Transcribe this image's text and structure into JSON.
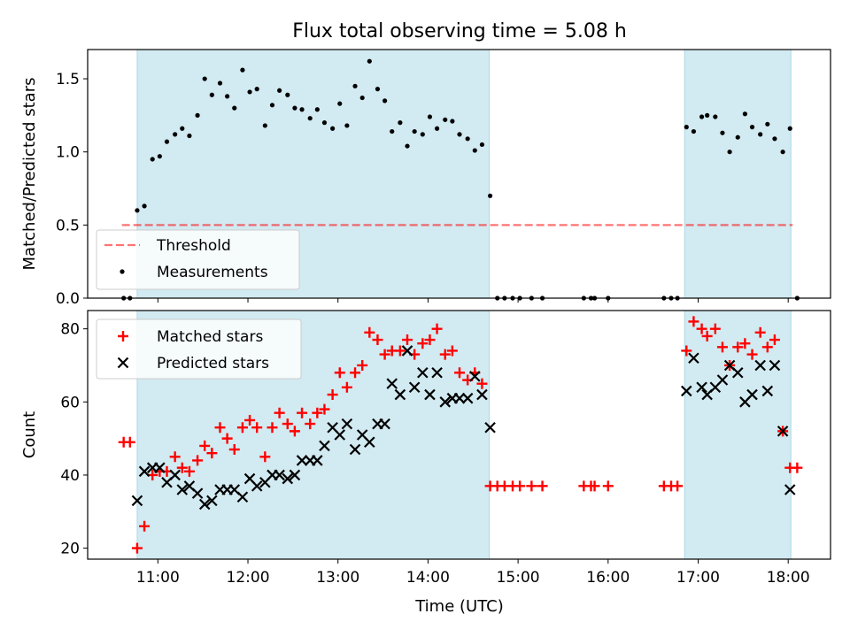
{
  "chart_data": {
    "type": "scatter",
    "title": "Flux total observing time = 5.08 h",
    "xlabel": "Time (UTC)",
    "x_tick_labels": [
      "11:00",
      "12:00",
      "13:00",
      "14:00",
      "15:00",
      "16:00",
      "17:00",
      "18:00"
    ],
    "x_ticks_hours": [
      11,
      12,
      13,
      14,
      15,
      16,
      17,
      18
    ],
    "xlim_hours": [
      10.22,
      18.47
    ],
    "shaded_intervals_hours": [
      [
        10.77,
        14.68
      ],
      [
        16.85,
        18.03
      ]
    ],
    "colors": {
      "shade": "#add8e6",
      "threshold": "#ff0000",
      "matched": "#ff0000",
      "predicted": "#000000"
    },
    "ratio_panel": {
      "ylabel": "Matched/Predicted stars",
      "ylim": [
        0,
        1.7
      ],
      "y_ticks": [
        0.0,
        0.5,
        1.0,
        1.5
      ],
      "y_tick_labels": [
        "0.0",
        "0.5",
        "1.0",
        "1.5"
      ],
      "legend": [
        "Threshold",
        "Measurements"
      ],
      "legend_placement": "lower-left",
      "threshold": {
        "y": 0.5,
        "x_range_hours": [
          10.6,
          18.05
        ]
      },
      "measurements": [
        [
          10.62,
          0.0
        ],
        [
          10.69,
          0.0
        ],
        [
          10.77,
          0.6
        ],
        [
          10.85,
          0.63
        ],
        [
          10.94,
          0.95
        ],
        [
          11.02,
          0.97
        ],
        [
          11.1,
          1.07
        ],
        [
          11.19,
          1.12
        ],
        [
          11.27,
          1.16
        ],
        [
          11.35,
          1.11
        ],
        [
          11.44,
          1.25
        ],
        [
          11.52,
          1.5
        ],
        [
          11.6,
          1.39
        ],
        [
          11.69,
          1.47
        ],
        [
          11.77,
          1.38
        ],
        [
          11.85,
          1.3
        ],
        [
          11.94,
          1.56
        ],
        [
          12.02,
          1.41
        ],
        [
          12.1,
          1.43
        ],
        [
          12.19,
          1.18
        ],
        [
          12.27,
          1.32
        ],
        [
          12.35,
          1.42
        ],
        [
          12.44,
          1.39
        ],
        [
          12.52,
          1.3
        ],
        [
          12.6,
          1.29
        ],
        [
          12.69,
          1.23
        ],
        [
          12.77,
          1.29
        ],
        [
          12.85,
          1.2
        ],
        [
          12.94,
          1.16
        ],
        [
          13.02,
          1.33
        ],
        [
          13.1,
          1.18
        ],
        [
          13.19,
          1.45
        ],
        [
          13.27,
          1.37
        ],
        [
          13.35,
          1.62
        ],
        [
          13.44,
          1.43
        ],
        [
          13.52,
          1.35
        ],
        [
          13.6,
          1.14
        ],
        [
          13.69,
          1.2
        ],
        [
          13.77,
          1.04
        ],
        [
          13.85,
          1.14
        ],
        [
          13.94,
          1.12
        ],
        [
          14.02,
          1.24
        ],
        [
          14.1,
          1.16
        ],
        [
          14.19,
          1.22
        ],
        [
          14.27,
          1.21
        ],
        [
          14.35,
          1.12
        ],
        [
          14.44,
          1.09
        ],
        [
          14.52,
          1.01
        ],
        [
          14.6,
          1.05
        ],
        [
          14.69,
          0.7
        ],
        [
          14.77,
          0.0
        ],
        [
          14.85,
          0.0
        ],
        [
          14.94,
          0.0
        ],
        [
          15.02,
          0.0
        ],
        [
          15.15,
          0.0
        ],
        [
          15.27,
          0.0
        ],
        [
          15.73,
          0.0
        ],
        [
          15.81,
          0.0
        ],
        [
          15.85,
          0.0
        ],
        [
          16.0,
          0.0
        ],
        [
          16.62,
          0.0
        ],
        [
          16.7,
          0.0
        ],
        [
          16.77,
          0.0
        ],
        [
          16.87,
          1.17
        ],
        [
          16.95,
          1.14
        ],
        [
          17.04,
          1.24
        ],
        [
          17.1,
          1.25
        ],
        [
          17.19,
          1.24
        ],
        [
          17.27,
          1.13
        ],
        [
          17.35,
          1.0
        ],
        [
          17.44,
          1.1
        ],
        [
          17.52,
          1.26
        ],
        [
          17.6,
          1.17
        ],
        [
          17.69,
          1.12
        ],
        [
          17.77,
          1.19
        ],
        [
          17.85,
          1.09
        ],
        [
          17.94,
          1.0
        ],
        [
          18.02,
          1.16
        ],
        [
          18.1,
          0.0
        ]
      ]
    },
    "count_panel": {
      "ylabel": "Count",
      "ylim": [
        17,
        85
      ],
      "y_ticks": [
        20,
        40,
        60,
        80
      ],
      "y_tick_labels": [
        "20",
        "40",
        "60",
        "80"
      ],
      "legend": [
        "Matched stars",
        "Predicted stars"
      ],
      "legend_placement": "upper-left",
      "matched": [
        [
          10.62,
          49
        ],
        [
          10.69,
          49
        ],
        [
          10.77,
          20
        ],
        [
          10.85,
          26
        ],
        [
          10.94,
          40
        ],
        [
          11.02,
          41
        ],
        [
          11.1,
          41
        ],
        [
          11.19,
          45
        ],
        [
          11.27,
          42
        ],
        [
          11.35,
          41
        ],
        [
          11.44,
          44
        ],
        [
          11.52,
          48
        ],
        [
          11.6,
          46
        ],
        [
          11.69,
          53
        ],
        [
          11.77,
          50
        ],
        [
          11.85,
          47
        ],
        [
          11.94,
          53
        ],
        [
          12.02,
          55
        ],
        [
          12.1,
          53
        ],
        [
          12.19,
          45
        ],
        [
          12.27,
          53
        ],
        [
          12.35,
          57
        ],
        [
          12.44,
          54
        ],
        [
          12.52,
          52
        ],
        [
          12.6,
          57
        ],
        [
          12.69,
          54
        ],
        [
          12.77,
          57
        ],
        [
          12.85,
          58
        ],
        [
          12.94,
          62
        ],
        [
          13.02,
          68
        ],
        [
          13.1,
          64
        ],
        [
          13.19,
          68
        ],
        [
          13.27,
          70
        ],
        [
          13.35,
          79
        ],
        [
          13.44,
          77
        ],
        [
          13.52,
          73
        ],
        [
          13.6,
          74
        ],
        [
          13.69,
          74
        ],
        [
          13.77,
          77
        ],
        [
          13.85,
          73
        ],
        [
          13.94,
          76
        ],
        [
          14.02,
          77
        ],
        [
          14.1,
          80
        ],
        [
          14.19,
          73
        ],
        [
          14.27,
          74
        ],
        [
          14.35,
          68
        ],
        [
          14.44,
          66
        ],
        [
          14.52,
          68
        ],
        [
          14.6,
          65
        ],
        [
          14.69,
          37
        ],
        [
          14.77,
          37
        ],
        [
          14.85,
          37
        ],
        [
          14.94,
          37
        ],
        [
          15.02,
          37
        ],
        [
          15.15,
          37
        ],
        [
          15.27,
          37
        ],
        [
          15.73,
          37
        ],
        [
          15.81,
          37
        ],
        [
          15.85,
          37
        ],
        [
          16.0,
          37
        ],
        [
          16.62,
          37
        ],
        [
          16.7,
          37
        ],
        [
          16.77,
          37
        ],
        [
          16.87,
          74
        ],
        [
          16.95,
          82
        ],
        [
          17.04,
          80
        ],
        [
          17.1,
          78
        ],
        [
          17.19,
          80
        ],
        [
          17.27,
          75
        ],
        [
          17.35,
          70
        ],
        [
          17.44,
          75
        ],
        [
          17.52,
          76
        ],
        [
          17.6,
          73
        ],
        [
          17.69,
          79
        ],
        [
          17.77,
          75
        ],
        [
          17.85,
          77
        ],
        [
          17.94,
          52
        ],
        [
          18.02,
          42
        ],
        [
          18.1,
          42
        ]
      ],
      "predicted": [
        [
          10.77,
          33
        ],
        [
          10.85,
          41
        ],
        [
          10.94,
          42
        ],
        [
          11.02,
          42
        ],
        [
          11.1,
          38
        ],
        [
          11.19,
          40
        ],
        [
          11.27,
          36
        ],
        [
          11.35,
          37
        ],
        [
          11.44,
          35
        ],
        [
          11.52,
          32
        ],
        [
          11.6,
          33
        ],
        [
          11.69,
          36
        ],
        [
          11.77,
          36
        ],
        [
          11.85,
          36
        ],
        [
          11.94,
          34
        ],
        [
          12.02,
          39
        ],
        [
          12.1,
          37
        ],
        [
          12.19,
          38
        ],
        [
          12.27,
          40
        ],
        [
          12.35,
          40
        ],
        [
          12.44,
          39
        ],
        [
          12.52,
          40
        ],
        [
          12.6,
          44
        ],
        [
          12.69,
          44
        ],
        [
          12.77,
          44
        ],
        [
          12.85,
          48
        ],
        [
          12.94,
          53
        ],
        [
          13.02,
          51
        ],
        [
          13.1,
          54
        ],
        [
          13.19,
          47
        ],
        [
          13.27,
          51
        ],
        [
          13.35,
          49
        ],
        [
          13.44,
          54
        ],
        [
          13.52,
          54
        ],
        [
          13.6,
          65
        ],
        [
          13.69,
          62
        ],
        [
          13.77,
          74
        ],
        [
          13.85,
          64
        ],
        [
          13.94,
          68
        ],
        [
          14.02,
          62
        ],
        [
          14.1,
          68
        ],
        [
          14.19,
          60
        ],
        [
          14.27,
          61
        ],
        [
          14.35,
          61
        ],
        [
          14.44,
          61
        ],
        [
          14.52,
          67
        ],
        [
          14.6,
          62
        ],
        [
          14.69,
          53
        ],
        [
          16.87,
          63
        ],
        [
          16.95,
          72
        ],
        [
          17.04,
          64
        ],
        [
          17.1,
          62
        ],
        [
          17.19,
          64
        ],
        [
          17.27,
          66
        ],
        [
          17.35,
          70
        ],
        [
          17.44,
          68
        ],
        [
          17.52,
          60
        ],
        [
          17.6,
          62
        ],
        [
          17.69,
          70
        ],
        [
          17.77,
          63
        ],
        [
          17.85,
          70
        ],
        [
          17.94,
          52
        ],
        [
          18.02,
          36
        ]
      ]
    }
  }
}
